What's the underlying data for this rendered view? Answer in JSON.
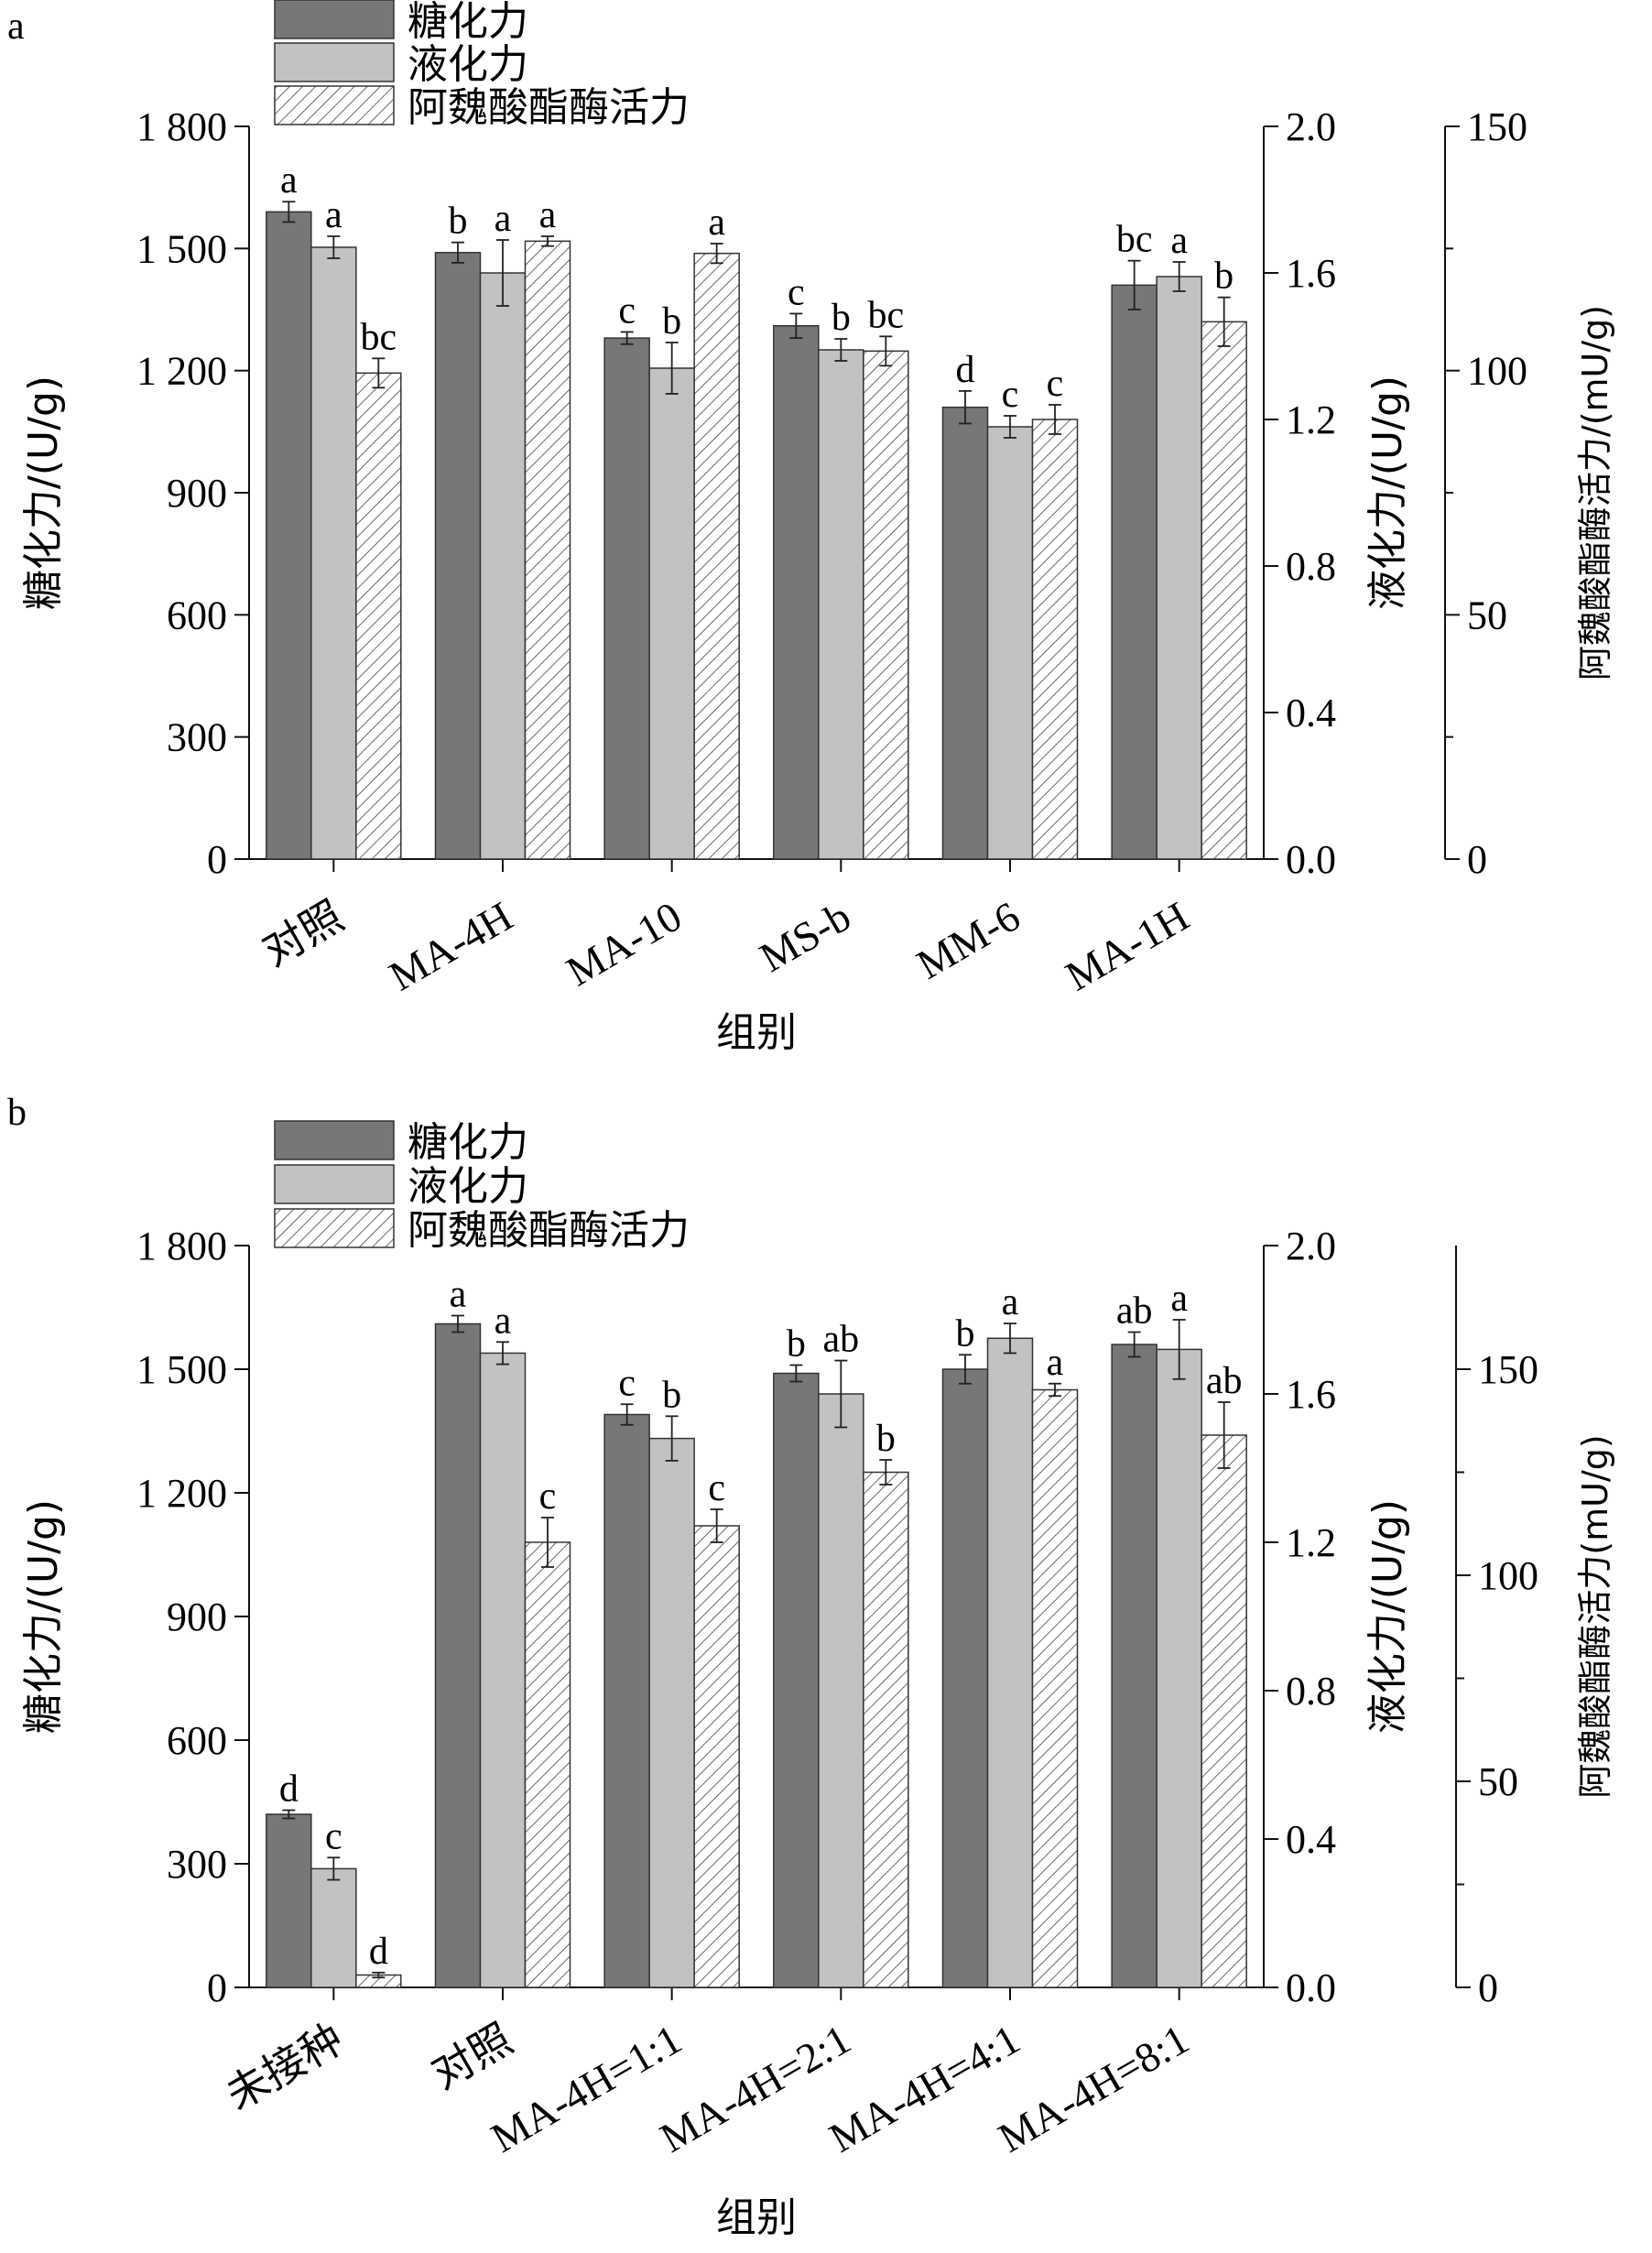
{
  "colors": {
    "sugar": "#777777",
    "liquefy": "#c2c2c2",
    "ferulic": "#ffffff",
    "ink": "#111111"
  },
  "legend": {
    "sugar": "糖化力",
    "liquefy": "液化力",
    "ferulic": "阿魏酸酯酶活力"
  },
  "chart_data": [
    {
      "panel": "a",
      "type": "bar",
      "xlabel": "组别",
      "ylabel_left": "糖化力/(U/g)",
      "ylabel_right1": "液化力/(U/g)",
      "ylabel_right2": "阿魏酸酯酶活力/(mU/g)",
      "y_left": {
        "min": 0,
        "max": 1800,
        "ticks": [
          0,
          300,
          600,
          900,
          1200,
          1500,
          1800
        ],
        "tick_labels": [
          "0",
          "300",
          "600",
          "900",
          "1 200",
          "1 500",
          "1 800"
        ]
      },
      "y_right1": {
        "min": 0,
        "max": 2.0,
        "ticks": [
          0,
          0.4,
          0.8,
          1.2,
          1.6,
          2.0
        ],
        "tick_labels": [
          "0.0",
          "0.4",
          "0.8",
          "1.2",
          "1.6",
          "2.0"
        ]
      },
      "y_right2": {
        "min": 0,
        "max": 150,
        "ticks": [
          0,
          50,
          100,
          150
        ],
        "tick_labels": [
          "0",
          "50",
          "100",
          "150"
        ]
      },
      "categories": [
        "对照",
        "MA-4H",
        "MA-10",
        "MS-b",
        "MM-6",
        "MA-1H"
      ],
      "series": [
        {
          "name": "糖化力",
          "axis": "left",
          "values": [
            1590,
            1490,
            1280,
            1310,
            1110,
            1410
          ],
          "errors": [
            25,
            25,
            15,
            30,
            40,
            60
          ],
          "letters": [
            "a",
            "b",
            "c",
            "c",
            "d",
            "bc"
          ]
        },
        {
          "name": "液化力",
          "axis": "right1",
          "values": [
            1.67,
            1.6,
            1.34,
            1.39,
            1.18,
            1.59
          ],
          "errors": [
            0.03,
            0.09,
            0.07,
            0.03,
            0.03,
            0.04
          ],
          "letters": [
            "a",
            "a",
            "b",
            "b",
            "c",
            "a"
          ]
        },
        {
          "name": "阿魏酸酯酶活力",
          "axis": "right2",
          "values": [
            99.5,
            126.5,
            124,
            104,
            90,
            110
          ],
          "errors": [
            3,
            1,
            2,
            3,
            3,
            5
          ],
          "letters": [
            "bc",
            "a",
            "a",
            "bc",
            "c",
            "b"
          ]
        }
      ]
    },
    {
      "panel": "b",
      "type": "bar",
      "xlabel": "组别",
      "ylabel_left": "糖化力/(U/g)",
      "ylabel_right1": "液化力/(U/g)",
      "ylabel_right2": "阿魏酸酯酶活力(mU/g)",
      "y_left": {
        "min": 0,
        "max": 1800,
        "ticks": [
          0,
          300,
          600,
          900,
          1200,
          1500,
          1800
        ],
        "tick_labels": [
          "0",
          "300",
          "600",
          "900",
          "1 200",
          "1 500",
          "1 800"
        ]
      },
      "y_right1": {
        "min": 0,
        "max": 2.0,
        "ticks": [
          0,
          0.4,
          0.8,
          1.2,
          1.6,
          2.0
        ],
        "tick_labels": [
          "0.0",
          "0.4",
          "0.8",
          "1.2",
          "1.6",
          "2.0"
        ]
      },
      "y_right2": {
        "min": 0,
        "max": 180,
        "ticks": [
          0,
          50,
          100,
          150
        ],
        "tick_labels": [
          "0",
          "50",
          "100",
          "150"
        ]
      },
      "categories": [
        "未接种",
        "对照",
        "MA-4H=1:1",
        "MA-4H=2:1",
        "MA-4H=4:1",
        "MA-4H=8:1"
      ],
      "series": [
        {
          "name": "糖化力",
          "axis": "left",
          "values": [
            420,
            1610,
            1390,
            1490,
            1500,
            1560
          ],
          "errors": [
            10,
            20,
            25,
            20,
            35,
            30
          ],
          "letters": [
            "d",
            "a",
            "c",
            "b",
            "b",
            "ab"
          ]
        },
        {
          "name": "液化力",
          "axis": "right1",
          "values": [
            0.32,
            1.71,
            1.48,
            1.6,
            1.75,
            1.72
          ],
          "errors": [
            0.03,
            0.03,
            0.06,
            0.09,
            0.04,
            0.08
          ],
          "letters": [
            "c",
            "a",
            "b",
            "ab",
            "a",
            "a"
          ]
        },
        {
          "name": "阿魏酸酯酶活力",
          "axis": "right2",
          "values": [
            3,
            108,
            112,
            125,
            145,
            134
          ],
          "errors": [
            0.6,
            6,
            4,
            3,
            1.5,
            8
          ],
          "letters": [
            "d",
            "c",
            "c",
            "b",
            "a",
            "ab"
          ]
        }
      ]
    }
  ]
}
